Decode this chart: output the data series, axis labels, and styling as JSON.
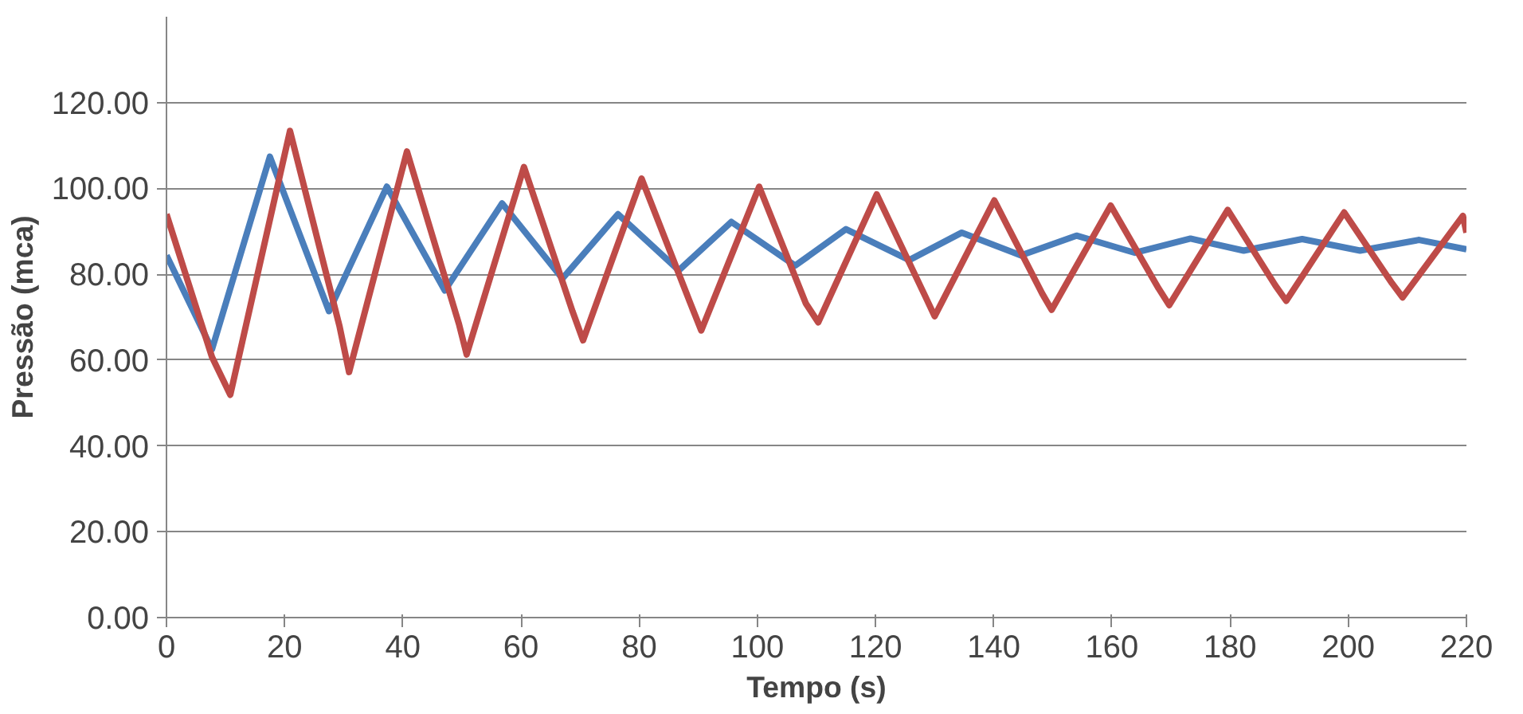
{
  "chart_data": {
    "type": "line",
    "xlabel": "Tempo (s)",
    "ylabel": "Pressão (mca)",
    "xlim": [
      0,
      220
    ],
    "xticks": [
      0,
      20,
      40,
      60,
      80,
      100,
      120,
      140,
      160,
      180,
      200,
      220
    ],
    "ylim": [
      0,
      140
    ],
    "yticks": [
      {
        "value": 0,
        "label": "0.00"
      },
      {
        "value": 20,
        "label": "20.00"
      },
      {
        "value": 40,
        "label": "40.00"
      },
      {
        "value": 60,
        "label": "60.00"
      },
      {
        "value": 80,
        "label": "80.00"
      },
      {
        "value": 100,
        "label": "100.00"
      },
      {
        "value": 120,
        "label": "120.00"
      }
    ],
    "grid": "y",
    "line_style": "solid",
    "marker": "none",
    "series": [
      {
        "color": "#4a7ebb",
        "x": [
          0,
          7.7,
          17.5,
          27.5,
          37.3,
          47.1,
          56.8,
          67,
          76.4,
          86.7,
          95.6,
          106.4,
          115,
          125.7,
          134.6,
          144.6,
          154,
          163.9,
          173.3,
          182.3,
          192.2,
          202,
          212,
          220
        ],
        "values": [
          84.4,
          62.5,
          107.4,
          71.4,
          100.4,
          76.2,
          96.5,
          79,
          94,
          80.9,
          92.2,
          82,
          90.5,
          83.3,
          89.7,
          84.4,
          89,
          85,
          88.3,
          85.5,
          88.2,
          85.5,
          88,
          85.8
        ]
      },
      {
        "color": "#be4b48",
        "x": [
          0,
          7.7,
          10.8,
          20.9,
          29.3,
          30.9,
          40.7,
          49.5,
          50.8,
          60.5,
          68.7,
          70.5,
          80.4,
          88.5,
          90.5,
          100.3,
          108.2,
          110.3,
          120.2,
          128.4,
          130,
          140.1,
          148.2,
          149.8,
          159.8,
          167.9,
          169.7,
          179.6,
          187.7,
          189.5,
          199.3,
          207.4,
          209.2,
          219.4,
          220
        ],
        "values": [
          94,
          60.7,
          51.9,
          113.4,
          67.8,
          57.2,
          108.6,
          68.4,
          61.3,
          105,
          71.4,
          64.6,
          102.3,
          73.8,
          66.9,
          100.4,
          73.2,
          68.8,
          98.6,
          74.9,
          70.2,
          97.2,
          75.5,
          71.7,
          96,
          76.7,
          72.8,
          95,
          77.3,
          73.8,
          94.4,
          77.9,
          74.6,
          93.6,
          89.7
        ]
      }
    ]
  }
}
